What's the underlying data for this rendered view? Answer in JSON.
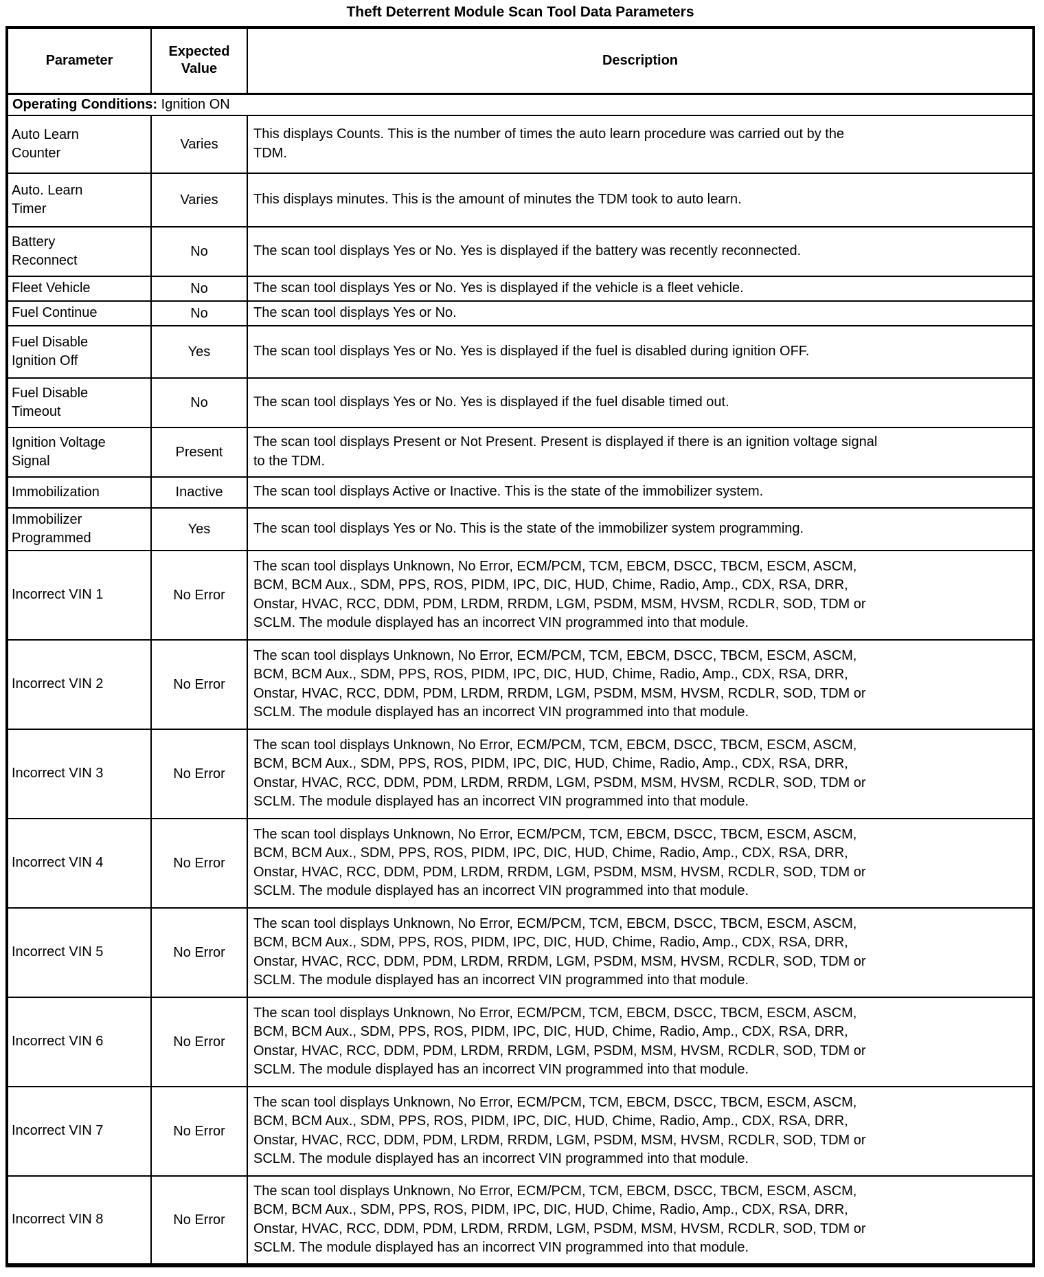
{
  "title": "Theft Deterrent Module Scan Tool Data Parameters",
  "table": {
    "headers": [
      "Parameter",
      "Expected\nValue",
      "Description"
    ],
    "section": {
      "label": "Operating Conditions:",
      "value": " Ignition ON"
    },
    "rows": [
      {
        "param": "Auto Learn\nCounter",
        "value": "Varies",
        "desc": "This displays Counts. This is the number of times the auto learn procedure was carried out by the\nTDM."
      },
      {
        "param": "Auto. Learn\nTimer",
        "value": "Varies",
        "desc": "This displays minutes. This is the amount of minutes the TDM took to auto learn."
      },
      {
        "param": "Battery\nReconnect",
        "value": "No",
        "desc": "The scan tool displays Yes or No. Yes is displayed if the battery was recently reconnected."
      },
      {
        "param": "Fleet Vehicle",
        "value": "No",
        "desc": "The scan tool displays Yes or No. Yes is displayed if the vehicle is a fleet vehicle."
      },
      {
        "param": "Fuel Continue",
        "value": "No",
        "desc": "The scan tool displays Yes or No."
      },
      {
        "param": "Fuel Disable\nIgnition Off",
        "value": "Yes",
        "desc": "The scan tool displays Yes or No. Yes is displayed if the fuel is disabled during ignition OFF."
      },
      {
        "param": "Fuel Disable\nTimeout",
        "value": "No",
        "desc": "The scan tool displays Yes or No. Yes is displayed if the fuel disable timed out."
      },
      {
        "param": "Ignition Voltage\nSignal",
        "value": "Present",
        "desc": "The scan tool displays Present or Not Present. Present is displayed if there is an ignition voltage signal\nto the TDM."
      },
      {
        "param": "Immobilization",
        "value": "Inactive",
        "desc": "The scan tool displays Active or Inactive. This is the state of the immobilizer system."
      },
      {
        "param": "Immobilizer\nProgrammed",
        "value": "Yes",
        "desc": "The scan tool displays Yes or No. This is the state of the immobilizer system programming."
      },
      {
        "param": "Incorrect VIN 1",
        "value": "No Error",
        "desc": "The scan tool displays Unknown, No Error, ECM/PCM, TCM, EBCM, DSCC, TBCM, ESCM, ASCM,\nBCM, BCM Aux., SDM, PPS, ROS, PIDM, IPC, DIC, HUD, Chime, Radio, Amp., CDX, RSA, DRR,\nOnstar, HVAC, RCC, DDM, PDM, LRDM, RRDM, LGM, PSDM, MSM, HVSM, RCDLR, SOD, TDM or\nSCLM. The module displayed has an incorrect VIN programmed into that module."
      },
      {
        "param": "Incorrect VIN 2",
        "value": "No Error",
        "desc": "The scan tool displays Unknown, No Error, ECM/PCM, TCM, EBCM, DSCC, TBCM, ESCM, ASCM,\nBCM, BCM Aux., SDM, PPS, ROS, PIDM, IPC, DIC, HUD, Chime, Radio, Amp., CDX, RSA, DRR,\nOnstar, HVAC, RCC, DDM, PDM, LRDM, RRDM, LGM, PSDM, MSM, HVSM, RCDLR, SOD, TDM or\nSCLM. The module displayed has an incorrect VIN programmed into that module."
      },
      {
        "param": "Incorrect VIN 3",
        "value": "No Error",
        "desc": "The scan tool displays Unknown, No Error, ECM/PCM, TCM, EBCM, DSCC, TBCM, ESCM, ASCM,\nBCM, BCM Aux., SDM, PPS, ROS, PIDM, IPC, DIC, HUD, Chime, Radio, Amp., CDX, RSA, DRR,\nOnstar, HVAC, RCC, DDM, PDM, LRDM, RRDM, LGM, PSDM, MSM, HVSM, RCDLR, SOD, TDM or\nSCLM. The module displayed has an incorrect VIN programmed into that module."
      },
      {
        "param": "Incorrect VIN 4",
        "value": "No Error",
        "desc": "The scan tool displays Unknown, No Error, ECM/PCM, TCM, EBCM, DSCC, TBCM, ESCM, ASCM,\nBCM, BCM Aux., SDM, PPS, ROS, PIDM, IPC, DIC, HUD, Chime, Radio, Amp., CDX, RSA, DRR,\nOnstar, HVAC, RCC, DDM, PDM, LRDM, RRDM, LGM, PSDM, MSM, HVSM, RCDLR, SOD, TDM or\nSCLM. The module displayed has an incorrect VIN programmed into that module."
      },
      {
        "param": "Incorrect VIN 5",
        "value": "No Error",
        "desc": "The scan tool displays Unknown, No Error, ECM/PCM, TCM, EBCM, DSCC, TBCM, ESCM, ASCM,\nBCM, BCM Aux., SDM, PPS, ROS, PIDM, IPC, DIC, HUD, Chime, Radio, Amp., CDX, RSA, DRR,\nOnstar, HVAC, RCC, DDM, PDM, LRDM, RRDM, LGM, PSDM, MSM, HVSM, RCDLR, SOD, TDM or\nSCLM. The module displayed has an incorrect VIN programmed into that module."
      },
      {
        "param": "Incorrect VIN 6",
        "value": "No Error",
        "desc": "The scan tool displays Unknown, No Error, ECM/PCM, TCM, EBCM, DSCC, TBCM, ESCM, ASCM,\nBCM, BCM Aux., SDM, PPS, ROS, PIDM, IPC, DIC, HUD, Chime, Radio, Amp., CDX, RSA, DRR,\nOnstar, HVAC, RCC, DDM, PDM, LRDM, RRDM, LGM, PSDM, MSM, HVSM, RCDLR, SOD, TDM or\nSCLM. The module displayed has an incorrect VIN programmed into that module."
      },
      {
        "param": "Incorrect VIN 7",
        "value": "No Error",
        "desc": "The scan tool displays Unknown, No Error, ECM/PCM, TCM, EBCM, DSCC, TBCM, ESCM, ASCM,\nBCM, BCM Aux., SDM, PPS, ROS, PIDM, IPC, DIC, HUD, Chime, Radio, Amp., CDX, RSA, DRR,\nOnstar, HVAC, RCC, DDM, PDM, LRDM, RRDM, LGM, PSDM, MSM, HVSM, RCDLR, SOD, TDM or\nSCLM. The module displayed has an incorrect VIN programmed into that module."
      },
      {
        "param": "Incorrect VIN 8",
        "value": "No Error",
        "desc": "The scan tool displays Unknown, No Error, ECM/PCM, TCM, EBCM, DSCC, TBCM, ESCM, ASCM,\nBCM, BCM Aux., SDM, PPS, ROS, PIDM, IPC, DIC, HUD, Chime, Radio, Amp., CDX, RSA, DRR,\nOnstar, HVAC, RCC, DDM, PDM, LRDM, RRDM, LGM, PSDM, MSM, HVSM, RCDLR, SOD, TDM or\nSCLM. The module displayed has an incorrect VIN programmed into that module."
      }
    ]
  }
}
